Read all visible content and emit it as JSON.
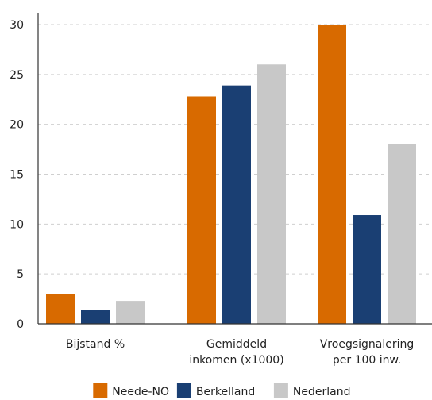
{
  "chart_data": {
    "type": "bar",
    "categories": [
      [
        "Bijstand %"
      ],
      [
        "Gemiddeld",
        "inkomen (x1000)"
      ],
      [
        "Vroegsignalering",
        "per 100 inw."
      ]
    ],
    "series": [
      {
        "name": "Neede-NO",
        "color": "#D86A00",
        "values": [
          3.0,
          22.8,
          30.0
        ]
      },
      {
        "name": "Berkelland",
        "color": "#1A3F73",
        "values": [
          1.4,
          23.9,
          10.9
        ]
      },
      {
        "name": "Nederland",
        "color": "#C8C8C8",
        "values": [
          2.3,
          26.0,
          18.0
        ]
      }
    ],
    "yticks": [
      0,
      5,
      10,
      15,
      20,
      25,
      30
    ],
    "ylim": [
      0,
      30
    ],
    "grid": true,
    "legend_position": "bottom-center"
  }
}
